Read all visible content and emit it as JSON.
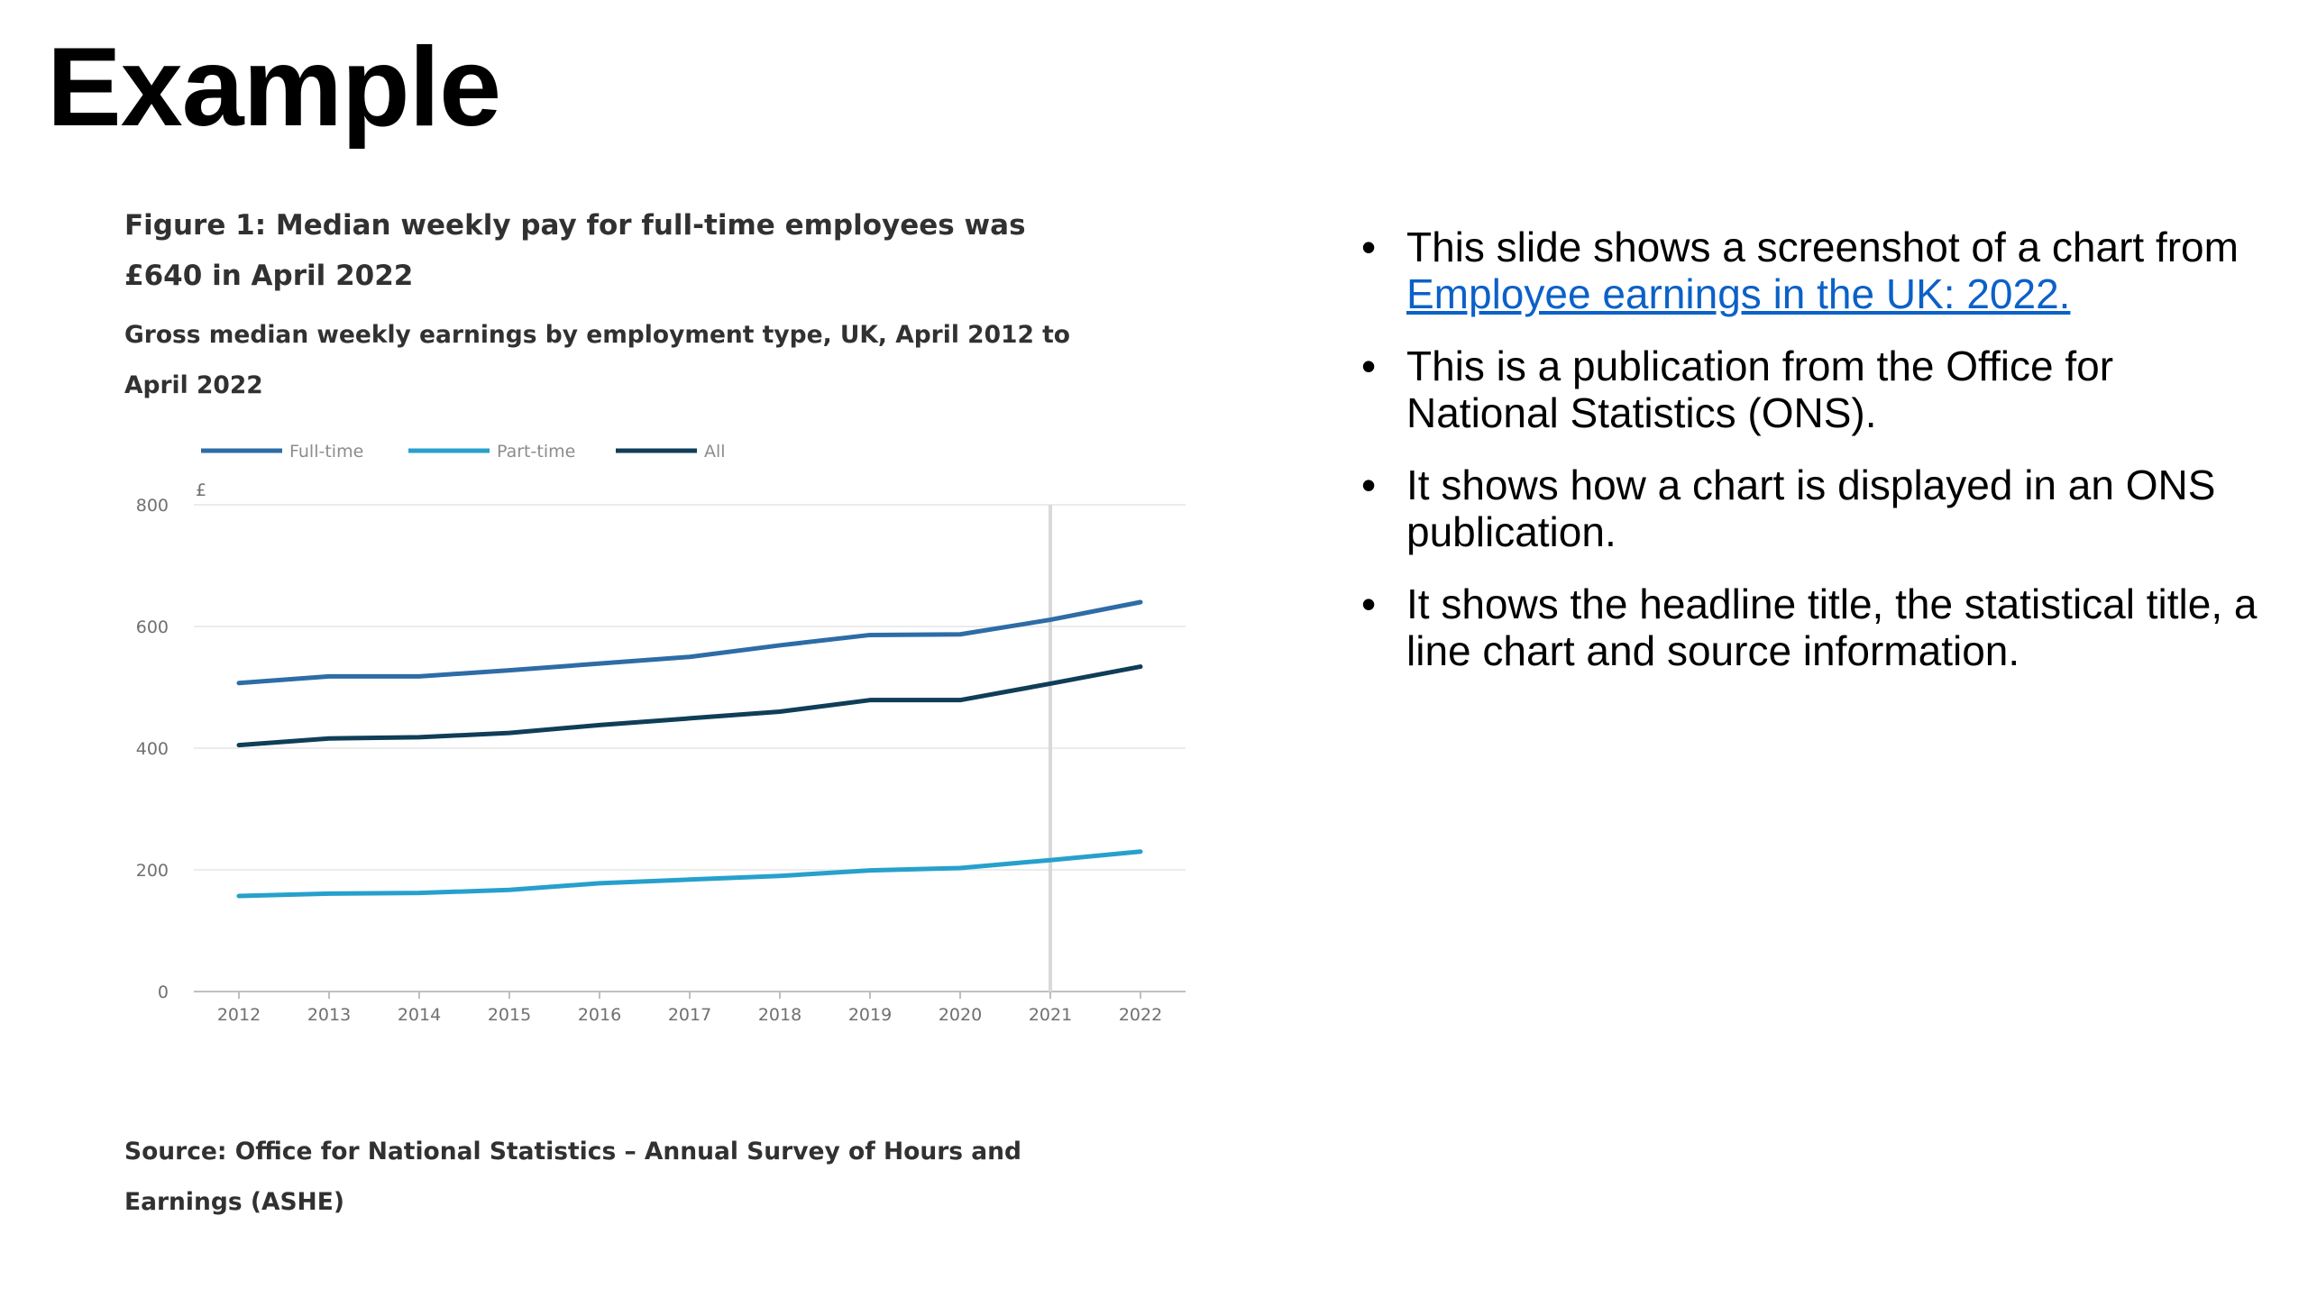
{
  "slide": {
    "title": "Example"
  },
  "figure": {
    "title": "Figure 1: Median weekly pay for full-time employees was £640 in April 2022",
    "subtitle": "Gross median weekly earnings by employment type, UK, April 2012 to April 2022",
    "source": "Source: Office for National Statistics – Annual Survey of Hours and Earnings (ASHE)"
  },
  "chart_data": {
    "type": "line",
    "title": "",
    "xlabel": "",
    "ylabel": "£",
    "x": [
      "2012",
      "2013",
      "2014",
      "2015",
      "2016",
      "2017",
      "2018",
      "2019",
      "2020",
      "2021",
      "2022"
    ],
    "ylim": [
      0,
      800
    ],
    "yticks": [
      "0",
      "200",
      "400",
      "600",
      "800"
    ],
    "grid": true,
    "legend_position": "top-left",
    "highlight_x": "2021",
    "series": [
      {
        "name": "Full-time",
        "color": "#2e6ca6",
        "values": [
          507,
          518,
          518,
          528,
          539,
          550,
          569,
          586,
          587,
          611,
          640
        ]
      },
      {
        "name": "Part-time",
        "color": "#27a0cc",
        "values": [
          157,
          161,
          162,
          167,
          178,
          184,
          190,
          199,
          203,
          216,
          230
        ]
      },
      {
        "name": "All",
        "color": "#0f3e57",
        "values": [
          405,
          416,
          418,
          425,
          438,
          449,
          460,
          479,
          479,
          506,
          534
        ]
      }
    ]
  },
  "bullets": [
    {
      "before": "This slide shows a screenshot of a chart from ",
      "link": "Employee earnings in the UK: 2022.",
      "after": ""
    },
    {
      "before": "This is a publication from the Office for National Statistics (ONS).",
      "link": "",
      "after": ""
    },
    {
      "before": "It shows how a chart is displayed in an ONS publication.",
      "link": "",
      "after": ""
    },
    {
      "before": "It shows the headline title, the statistical title, a line chart and source information.",
      "link": "",
      "after": ""
    }
  ],
  "bullet_symbol": "•"
}
